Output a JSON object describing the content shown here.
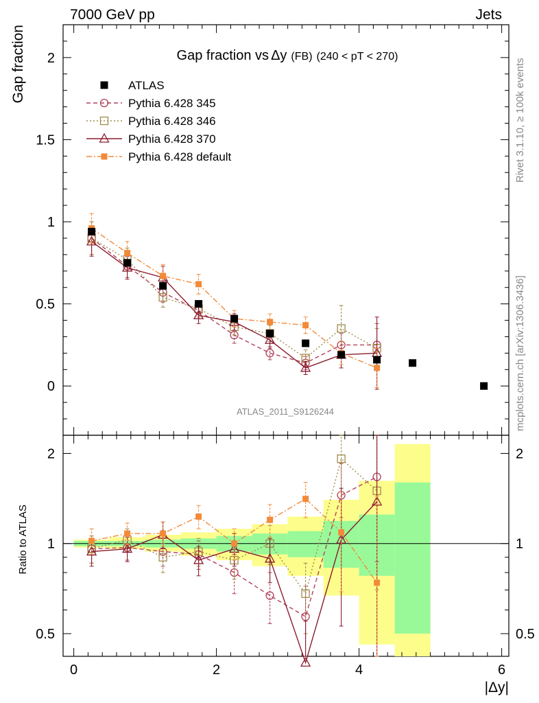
{
  "header": {
    "energy_label": "7000 GeV pp",
    "process_label": "Jets",
    "rivet_label": "Rivet 3.1.10, ≥ 100k events",
    "mcplots_label": "mcplots.cern.ch [arXiv:1306.3436]",
    "analysis_label": "ATLAS_2011_S9126244"
  },
  "chart_data": [
    {
      "type": "scatter",
      "panel": "main",
      "title": {
        "prefix": "Gap fraction vs",
        "delta": "Δ",
        "var": "y",
        "suffix": "(FB)",
        "range": "(240 < pT < 270)"
      },
      "xlabel": "|Δy|",
      "ylabel": "Gap fraction",
      "xlim": [
        -0.15,
        6.1
      ],
      "ylim": [
        -0.3,
        2.2
      ],
      "xticks": [
        0,
        2,
        4,
        6
      ],
      "yticks": [
        0,
        0.5,
        1,
        1.5,
        2
      ],
      "x": [
        0.25,
        0.75,
        1.25,
        1.75,
        2.25,
        2.75,
        3.25,
        3.75,
        4.25,
        4.75,
        5.75
      ],
      "series": [
        {
          "name": "ATLAS",
          "color": "#000000",
          "marker": "filled-square",
          "dash": "none",
          "values": [
            0.94,
            0.75,
            0.61,
            0.5,
            0.41,
            0.32,
            0.26,
            0.19,
            0.16,
            0.14,
            0.0
          ],
          "errors": [
            0.02,
            0.02,
            0.02,
            0.02,
            0.02,
            0.02,
            0.02,
            0.02,
            0.02,
            0.01,
            0.01
          ]
        },
        {
          "name": "Pythia 6.428 345",
          "color": "#b0405a",
          "marker": "circle",
          "dash": "6,4",
          "values": [
            0.9,
            0.73,
            0.57,
            0.46,
            0.31,
            0.2,
            0.14,
            0.25,
            0.25
          ],
          "errors": [
            0.1,
            0.07,
            0.06,
            0.05,
            0.05,
            0.04,
            0.04,
            0.07,
            0.13
          ]
        },
        {
          "name": "Pythia 6.428 346",
          "color": "#a08a4a",
          "marker": "square",
          "dash": "2,3",
          "values": [
            0.9,
            0.77,
            0.54,
            0.47,
            0.36,
            0.32,
            0.17,
            0.35,
            0.23
          ],
          "errors": [
            0.1,
            0.07,
            0.06,
            0.05,
            0.05,
            0.05,
            0.05,
            0.14,
            0.12
          ]
        },
        {
          "name": "Pythia 6.428 370",
          "color": "#8b1a2e",
          "marker": "triangle",
          "dash": "none",
          "values": [
            0.88,
            0.72,
            0.66,
            0.43,
            0.39,
            0.28,
            0.11,
            0.19,
            0.2
          ],
          "errors": [
            0.09,
            0.07,
            0.07,
            0.05,
            0.05,
            0.05,
            0.04,
            0.08,
            0.22
          ]
        },
        {
          "name": "Pythia 6.428 default",
          "color": "#f28a3a",
          "marker": "filled-square-small",
          "dash": "8,3,2,3",
          "values": [
            0.96,
            0.81,
            0.67,
            0.62,
            0.41,
            0.39,
            0.37,
            0.2,
            0.11
          ],
          "errors": [
            0.09,
            0.07,
            0.07,
            0.06,
            0.05,
            0.05,
            0.05,
            0.07,
            0.12
          ]
        }
      ]
    },
    {
      "type": "scatter",
      "panel": "ratio",
      "ylabel": "Ratio to ATLAS",
      "xlabel": "|Δy|",
      "ylim": [
        0.42,
        2.3
      ],
      "yscale": "log",
      "yticks": [
        0.5,
        1,
        2
      ],
      "x": [
        0.25,
        0.75,
        1.25,
        1.75,
        2.25,
        2.75,
        3.25,
        3.75,
        4.25
      ],
      "uncertainty_bands": {
        "edges": [
          0,
          0.5,
          1,
          1.5,
          2,
          2.5,
          3,
          3.5,
          4,
          4.5,
          5
        ],
        "stat_lo": [
          0.98,
          0.98,
          0.97,
          0.96,
          0.94,
          0.92,
          0.9,
          0.83,
          0.78,
          0.5
        ],
        "stat_hi": [
          1.02,
          1.02,
          1.03,
          1.04,
          1.06,
          1.08,
          1.1,
          1.19,
          1.25,
          1.6
        ],
        "syst_lo": [
          0.97,
          0.96,
          0.94,
          0.91,
          0.88,
          0.84,
          0.78,
          0.67,
          0.46,
          0.4
        ],
        "syst_hi": [
          1.03,
          1.05,
          1.07,
          1.09,
          1.12,
          1.16,
          1.23,
          1.4,
          1.62,
          2.15
        ]
      },
      "series": [
        {
          "name": "Pythia 6.428 345",
          "values": [
            0.96,
            0.97,
            0.94,
            0.92,
            0.8,
            0.67,
            0.57,
            1.45,
            1.67
          ],
          "errors": [
            0.1,
            0.09,
            0.1,
            0.1,
            0.12,
            0.13,
            0.15,
            0.4,
            0.8
          ]
        },
        {
          "name": "Pythia 6.428 346",
          "values": [
            0.96,
            1.03,
            0.9,
            0.94,
            0.88,
            1.0,
            0.68,
            1.92,
            1.5
          ],
          "errors": [
            0.1,
            0.09,
            0.1,
            0.1,
            0.12,
            0.15,
            0.18,
            0.7,
            0.8
          ]
        },
        {
          "name": "Pythia 6.428 370",
          "values": [
            0.94,
            0.96,
            1.07,
            0.88,
            0.96,
            0.89,
            0.4,
            1.03,
            1.38
          ],
          "errors": [
            0.1,
            0.09,
            0.11,
            0.1,
            0.12,
            0.15,
            0.15,
            0.5,
            1.3
          ]
        },
        {
          "name": "Pythia 6.428 default",
          "values": [
            1.02,
            1.08,
            1.08,
            1.23,
            1.0,
            1.2,
            1.41,
            1.09,
            0.74
          ],
          "errors": [
            0.1,
            0.09,
            0.1,
            0.11,
            0.12,
            0.15,
            0.19,
            0.4,
            0.7
          ]
        }
      ]
    }
  ]
}
